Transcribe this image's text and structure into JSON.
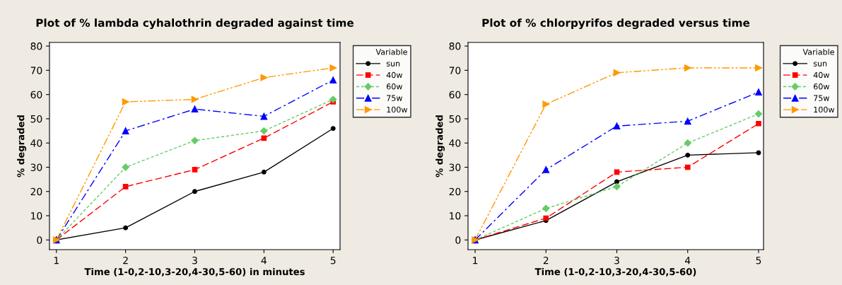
{
  "chart_data": [
    {
      "type": "line",
      "title": "Plot of % lambda cyhalothrin degraded against time",
      "xlabel": "Time (1-0,2-10,3-20,4-30,5-60) in minutes",
      "ylabel": "% degraded",
      "legend_title": "Variable",
      "legend": "top right",
      "grid": false,
      "x": [
        1,
        2,
        3,
        4,
        5
      ],
      "xlim": [
        0.9,
        5.1
      ],
      "xticks": [
        1,
        2,
        3,
        4,
        5
      ],
      "ylim": [
        -4,
        81.5
      ],
      "yticks": [
        0,
        10,
        20,
        30,
        40,
        50,
        60,
        70,
        80
      ],
      "series": [
        {
          "name": "sun",
          "color": "#000000",
          "marker": "circle",
          "line_style": "solid",
          "values": [
            0,
            5,
            20,
            28,
            46
          ]
        },
        {
          "name": "40w",
          "color": "#ff0000",
          "marker": "square",
          "line_style": "dashed",
          "values": [
            0,
            22,
            29,
            42,
            57
          ]
        },
        {
          "name": "60w",
          "color": "#66cc66",
          "marker": "diamond",
          "line_style": "dotted",
          "values": [
            0,
            30,
            41,
            45,
            58
          ]
        },
        {
          "name": "75w",
          "color": "#0000ff",
          "marker": "triangle",
          "line_style": "dashdot",
          "values": [
            0,
            45,
            54,
            51,
            66
          ]
        },
        {
          "name": "100w",
          "color": "#ff9900",
          "marker": "triangle-right",
          "line_style": "dashdotdot",
          "values": [
            0,
            57,
            58,
            67,
            71
          ]
        }
      ]
    },
    {
      "type": "line",
      "title": "Plot of % chlorpyrifos degraded versus time",
      "xlabel": "Time (1-0,2-10,3-20,4-30,5-60)",
      "ylabel": "% degraded",
      "legend_title": "Variable",
      "legend": "top right",
      "grid": false,
      "x": [
        1,
        2,
        3,
        4,
        5
      ],
      "xlim": [
        0.9,
        5.07
      ],
      "xticks": [
        1,
        2,
        3,
        4,
        5
      ],
      "ylim": [
        -4,
        81.5
      ],
      "yticks": [
        0,
        10,
        20,
        30,
        40,
        50,
        60,
        70,
        80
      ],
      "series": [
        {
          "name": "sun",
          "color": "#000000",
          "marker": "circle",
          "line_style": "solid",
          "values": [
            0,
            8,
            24,
            35,
            36
          ]
        },
        {
          "name": "40w",
          "color": "#ff0000",
          "marker": "square",
          "line_style": "dashed",
          "values": [
            0,
            9,
            28,
            30,
            48
          ]
        },
        {
          "name": "60w",
          "color": "#66cc66",
          "marker": "diamond",
          "line_style": "dotted",
          "values": [
            0,
            13,
            22,
            40,
            52
          ]
        },
        {
          "name": "75w",
          "color": "#0000ff",
          "marker": "triangle",
          "line_style": "dashdot",
          "values": [
            0,
            29,
            47,
            49,
            61
          ]
        },
        {
          "name": "100w",
          "color": "#ff9900",
          "marker": "triangle-right",
          "line_style": "dashdotdot",
          "values": [
            0,
            56,
            69,
            71,
            71
          ]
        }
      ]
    }
  ]
}
